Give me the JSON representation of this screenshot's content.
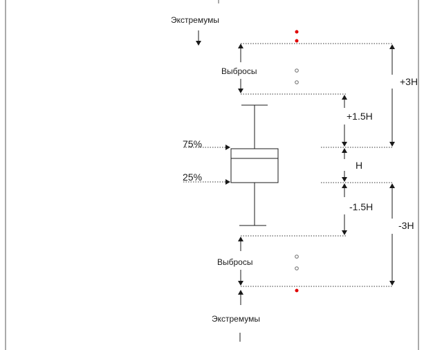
{
  "labels": {
    "extremes_top": "Экстремумы",
    "outliers_top": "Выбросы",
    "outliers_bottom": "Выбросы",
    "extremes_bottom": "Экстремумы",
    "q75": "75%",
    "q25": "25%",
    "plus_3h": "+3H",
    "plus_1_5h": "+1.5H",
    "h": "H",
    "minus_1_5h": "-1.5H",
    "minus_3h": "-3H"
  },
  "colors": {
    "line": "#1a1a1a",
    "extreme_point": "#e00000",
    "outlier_point": "#6a6a6a"
  },
  "points": {
    "extreme_marker": "filled red dot",
    "outlier_marker": "hollow circle"
  }
}
